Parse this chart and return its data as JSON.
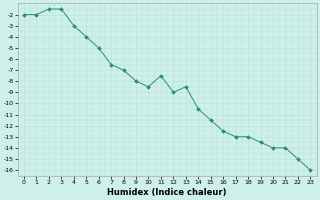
{
  "x": [
    0,
    1,
    2,
    3,
    4,
    5,
    6,
    7,
    8,
    9,
    10,
    11,
    12,
    13,
    14,
    15,
    16,
    17,
    18,
    19,
    20,
    21,
    22,
    23
  ],
  "y": [
    -2.0,
    -2.0,
    -1.5,
    -1.5,
    -3.0,
    -4.0,
    -5.0,
    -6.5,
    -7.0,
    -8.0,
    -8.5,
    -7.5,
    -9.0,
    -8.5,
    -10.5,
    -11.5,
    -12.5,
    -13.0,
    -13.0,
    -13.5,
    -14.0,
    -14.0,
    -15.0,
    -16.0
  ],
  "line_color": "#2e8b7a",
  "marker": "D",
  "marker_size": 2.0,
  "bg_color": "#cef0ea",
  "grid_color": "#b8ddd8",
  "xlabel": "Humidex (Indice chaleur)",
  "xlim": [
    -0.5,
    23.5
  ],
  "ylim": [
    -16.5,
    -1.0
  ],
  "yticks": [
    -2,
    -3,
    -4,
    -5,
    -6,
    -7,
    -8,
    -9,
    -10,
    -11,
    -12,
    -13,
    -14,
    -15,
    -16
  ],
  "xticks": [
    0,
    1,
    2,
    3,
    4,
    5,
    6,
    7,
    8,
    9,
    10,
    11,
    12,
    13,
    14,
    15,
    16,
    17,
    18,
    19,
    20,
    21,
    22,
    23
  ],
  "tick_fontsize": 4.5,
  "label_fontsize": 6.0,
  "linewidth": 0.7
}
